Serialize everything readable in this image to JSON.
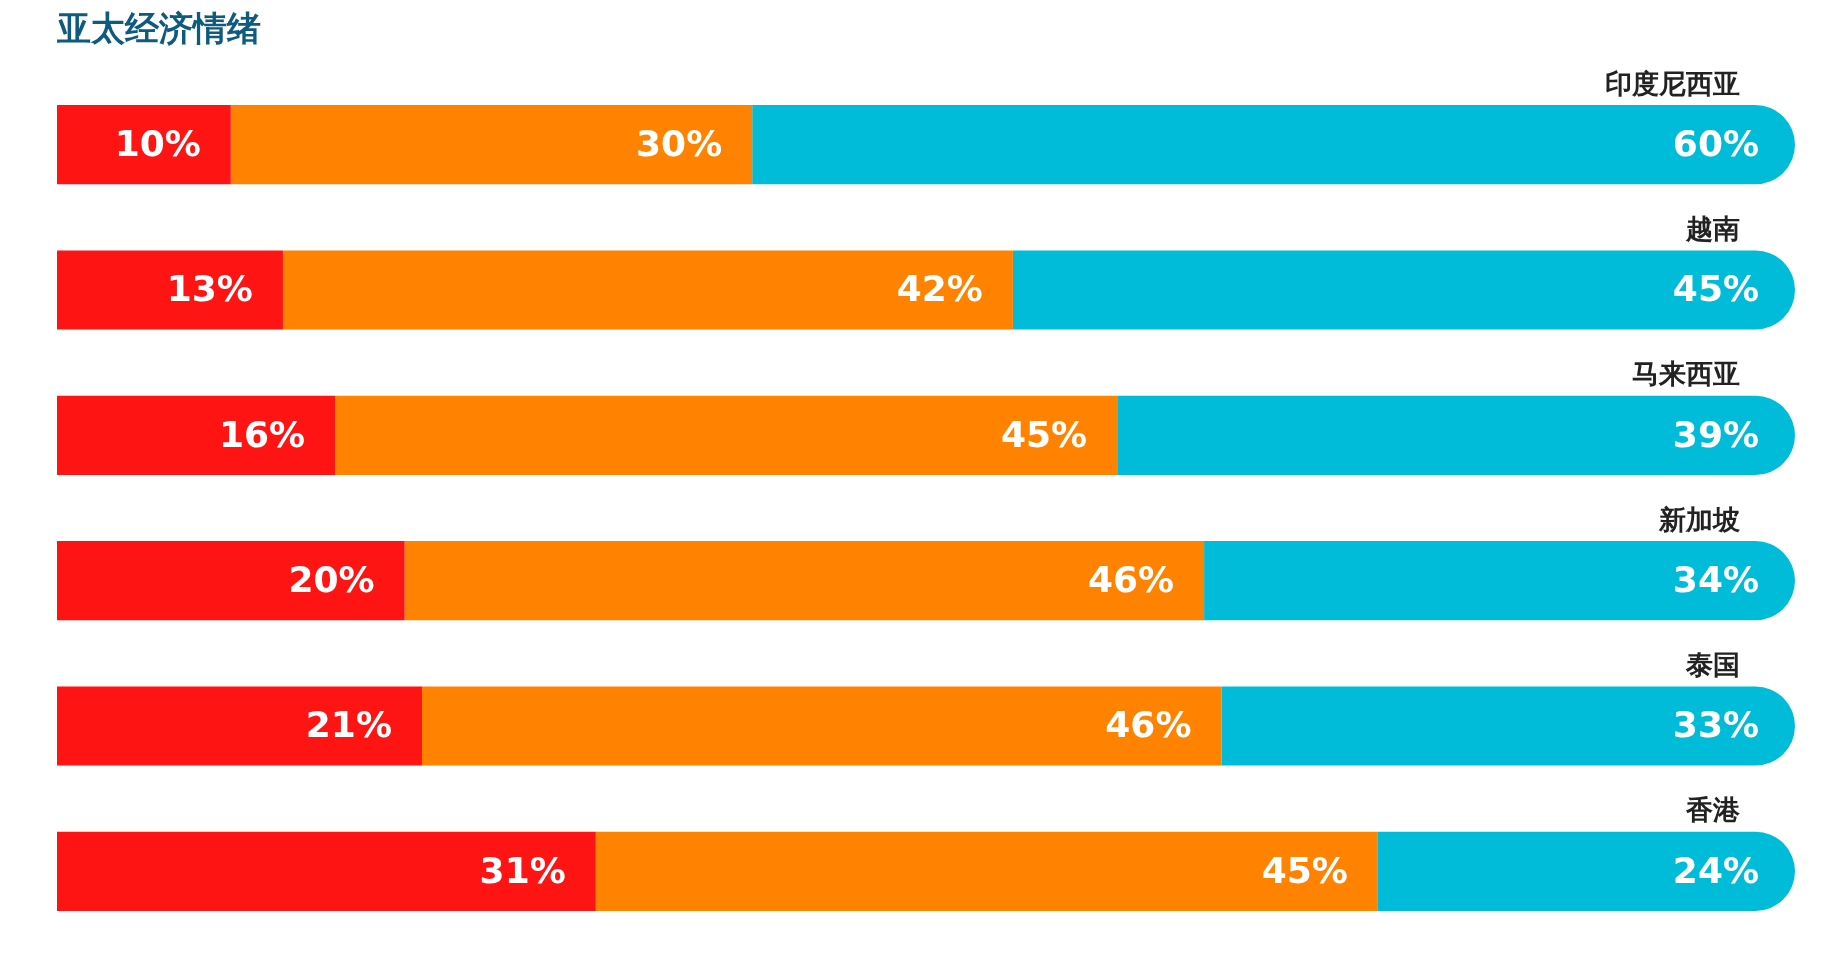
{
  "chart_data": {
    "type": "bar",
    "orientation": "horizontal",
    "stacked": true,
    "title": "亚太经济情绪",
    "legend": false,
    "tick_labels": false,
    "categories": [
      "印度尼西亚",
      "越南",
      "马来西亚",
      "新加坡",
      "泰国",
      "香港"
    ],
    "series": [
      {
        "color": "#ff1414",
        "values": [
          10,
          13,
          16,
          20,
          21,
          31
        ],
        "value_labels": [
          "10%",
          "13%",
          "16%",
          "20%",
          "21%",
          "31%"
        ]
      },
      {
        "color": "#ff8200",
        "values": [
          30,
          42,
          45,
          46,
          46,
          45
        ],
        "value_labels": [
          "30%",
          "42%",
          "45%",
          "46%",
          "46%",
          "45%"
        ]
      },
      {
        "color": "#00bcd8",
        "values": [
          60,
          45,
          39,
          34,
          33,
          24
        ],
        "value_labels": [
          "60%",
          "45%",
          "39%",
          "34%",
          "33%",
          "24%"
        ]
      }
    ]
  }
}
